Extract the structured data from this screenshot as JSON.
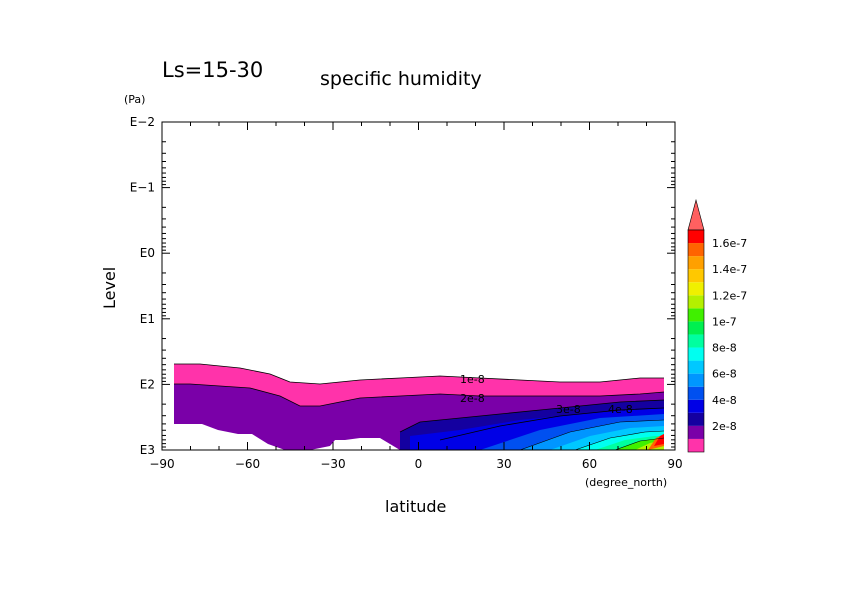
{
  "chart_data": {
    "type": "contour",
    "title": "specific humidity",
    "subtitle": "Ls=15-30",
    "xlabel": "latitude",
    "xunit": "(degree_north)",
    "ylabel": "Level",
    "yunit": "(Pa)",
    "xlim": [
      -90,
      90
    ],
    "xticks": [
      -90,
      -60,
      -30,
      0,
      30,
      60,
      90
    ],
    "xtick_labels": [
      "−90",
      "−60",
      "−30",
      "0",
      "30",
      "60",
      "90"
    ],
    "yscale": "log",
    "ylim_exponent": [
      -2,
      3
    ],
    "yticks_exponent": [
      -2,
      -1,
      0,
      1,
      2,
      3
    ],
    "ytick_labels": [
      "E−2",
      "E−1",
      "E0",
      "E1",
      "E2",
      "E3"
    ],
    "contour_labels": [
      "1e-8",
      "2e-8",
      "3e-8",
      "4e-8"
    ],
    "legend": {
      "levels": [
        {
          "label": "",
          "color": "#ff33aa"
        },
        {
          "label": "2e-8",
          "color": "#7a00a8"
        },
        {
          "label": "",
          "color": "#1400a0"
        },
        {
          "label": "4e-8",
          "color": "#0000e6"
        },
        {
          "label": "",
          "color": "#0050f0"
        },
        {
          "label": "6e-8",
          "color": "#0096ff"
        },
        {
          "label": "",
          "color": "#00c8ff"
        },
        {
          "label": "8e-8",
          "color": "#00fff0"
        },
        {
          "label": "",
          "color": "#00ffa0"
        },
        {
          "label": "1e-7",
          "color": "#00f050"
        },
        {
          "label": "",
          "color": "#40f000"
        },
        {
          "label": "1.2e-7",
          "color": "#b4f000"
        },
        {
          "label": "",
          "color": "#f0f000"
        },
        {
          "label": "1.4e-7",
          "color": "#ffc800"
        },
        {
          "label": "",
          "color": "#ffa000"
        },
        {
          "label": "1.6e-7",
          "color": "#ff6400"
        },
        {
          "label": "",
          "color": "#ff0000"
        }
      ],
      "overflow_color": "#ff6060"
    },
    "regions": [
      {
        "band": "1e-8 to 2e-8",
        "color": "#ff33aa"
      },
      {
        "band": "2e-8 to 3e-8",
        "color": "#7a00a8"
      },
      {
        "band": "3e-8 to 4e-8",
        "color": "#1400a0"
      },
      {
        "band": "above 4e-8",
        "color": "#0000e6"
      }
    ]
  }
}
